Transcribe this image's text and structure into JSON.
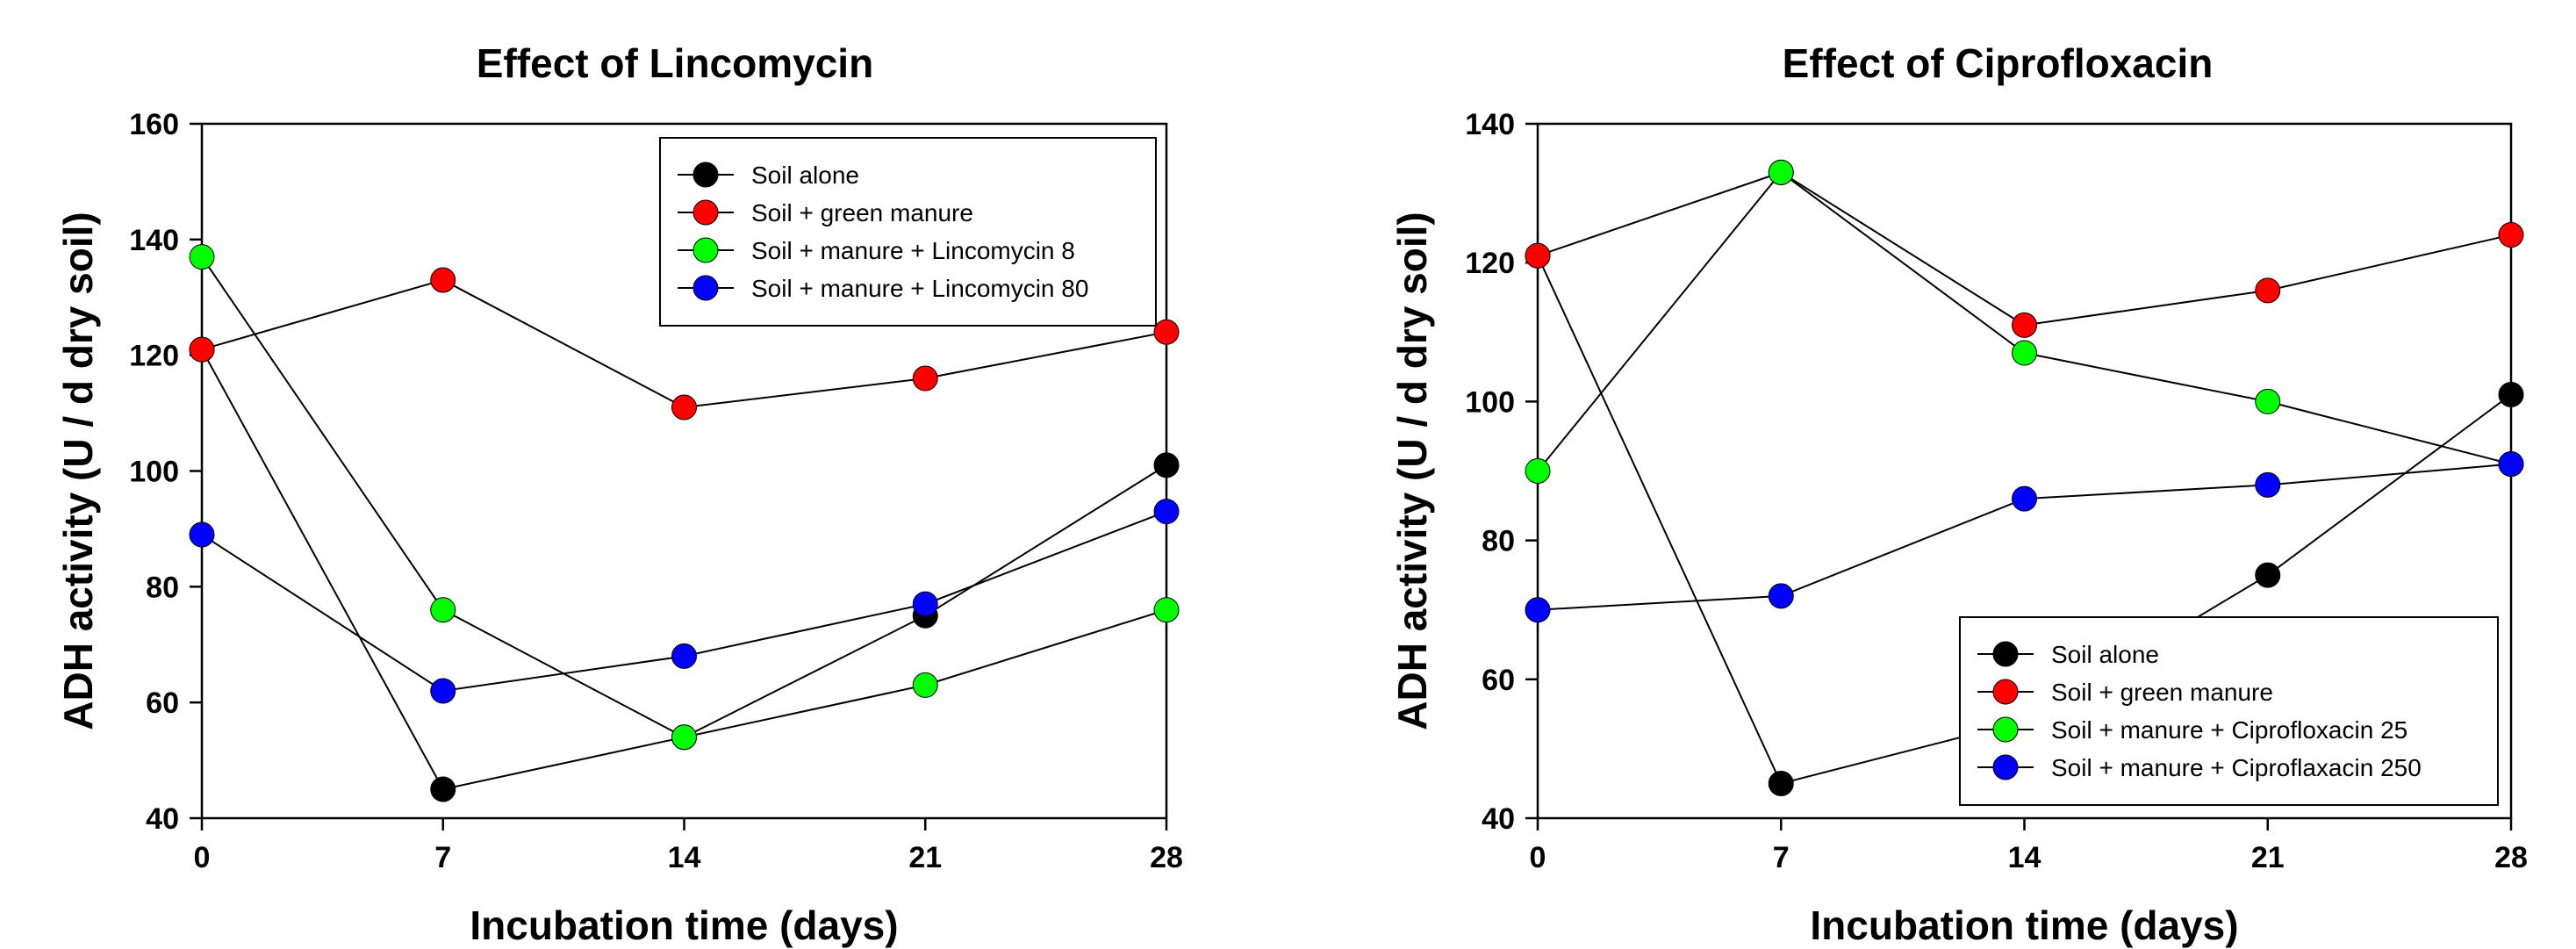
{
  "chart_data": [
    {
      "type": "line",
      "title": "Effect of Lincomycin",
      "xlabel": "Incubation time (days)",
      "ylabel": "ADH activity (U / d dry soil)",
      "x": [
        0,
        7,
        14,
        21,
        28
      ],
      "xlim": [
        0,
        28
      ],
      "ylim": [
        40,
        160
      ],
      "xticks": [
        0,
        7,
        14,
        21,
        28
      ],
      "yticks": [
        40,
        60,
        80,
        100,
        120,
        140,
        160
      ],
      "grid": false,
      "legend_position": "top-right",
      "series": [
        {
          "name": "Soil alone",
          "color": "#000000",
          "values": [
            121,
            45,
            54,
            75,
            101
          ]
        },
        {
          "name": "Soil + green manure",
          "color": "#ff0000",
          "values": [
            121,
            133,
            111,
            116,
            124
          ]
        },
        {
          "name": "Soil + manure + Lincomycin 8",
          "color": "#00ff00",
          "values": [
            137,
            76,
            54,
            63,
            76
          ]
        },
        {
          "name": "Soil + manure + Lincomycin 80",
          "color": "#0000ff",
          "values": [
            89,
            62,
            68,
            77,
            93
          ]
        }
      ]
    },
    {
      "type": "line",
      "title": "Effect of Ciprofloxacin",
      "xlabel": "Incubation time (days)",
      "ylabel": "ADH activity (U / d dry soil)",
      "x": [
        0,
        7,
        14,
        21,
        28
      ],
      "xlim": [
        0,
        28
      ],
      "ylim": [
        40,
        140
      ],
      "xticks": [
        0,
        7,
        14,
        21,
        28
      ],
      "yticks": [
        40,
        60,
        80,
        100,
        120,
        140
      ],
      "grid": false,
      "legend_position": "bottom-right",
      "series": [
        {
          "name": "Soil alone",
          "color": "#000000",
          "values": [
            121,
            45,
            54,
            75,
            101
          ]
        },
        {
          "name": "Soil + green manure",
          "color": "#ff0000",
          "values": [
            121,
            133,
            111,
            116,
            124
          ]
        },
        {
          "name": "Soil + manure + Ciprofloxacin 25",
          "color": "#00ff00",
          "values": [
            90,
            133,
            107,
            100,
            91
          ]
        },
        {
          "name": "Soil + manure + Ciproflaxacin 250",
          "color": "#0000ff",
          "values": [
            70,
            72,
            86,
            88,
            91
          ]
        }
      ]
    }
  ]
}
